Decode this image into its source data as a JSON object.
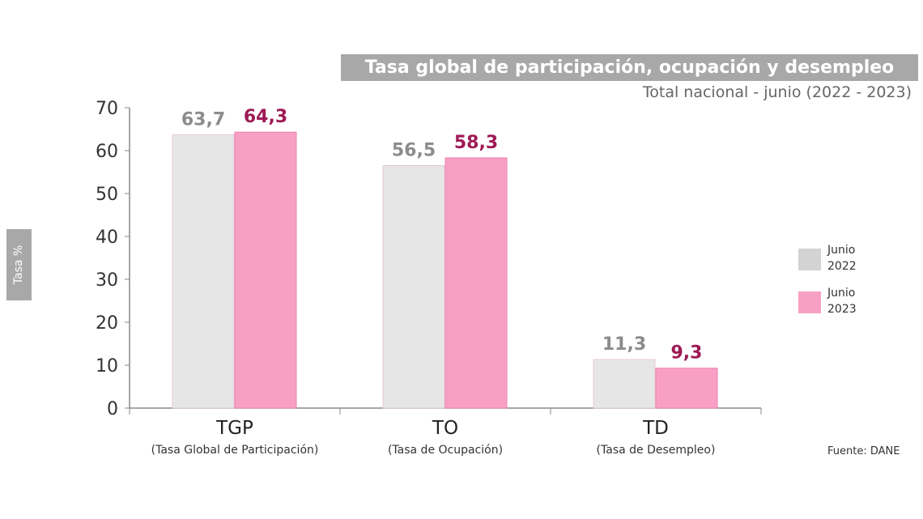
{
  "chart_data": {
    "type": "bar",
    "title": "Tasa global de participación, ocupación y desempleo",
    "subtitle": "Total nacional - junio (2022 - 2023)",
    "ylabel": "Tasa %",
    "ylim": [
      0,
      70
    ],
    "yticks": [
      0,
      10,
      20,
      30,
      40,
      50,
      60,
      70
    ],
    "grid": false,
    "legend_position": "right",
    "categories": [
      "TGP",
      "TO",
      "TD"
    ],
    "category_sublabels": [
      "(Tasa Global de Participación)",
      "(Tasa de Ocupación)",
      "(Tasa de Desempleo)"
    ],
    "series": [
      {
        "name": "Junio 2022",
        "legend_lines": [
          "Junio",
          "2022"
        ],
        "values": [
          63.7,
          56.5,
          11.3
        ],
        "labels": [
          "63,7",
          "56,5",
          "11,3"
        ],
        "color": "#e6e6e6",
        "label_color": "#8c8c8c"
      },
      {
        "name": "Junio 2023",
        "legend_lines": [
          "Junio",
          "2023"
        ],
        "values": [
          64.3,
          58.3,
          9.3
        ],
        "labels": [
          "64,3",
          "58,3",
          "9,3"
        ],
        "color": "#f8a0c4",
        "label_color": "#9e1a55"
      }
    ],
    "source": "Fuente: DANE"
  }
}
